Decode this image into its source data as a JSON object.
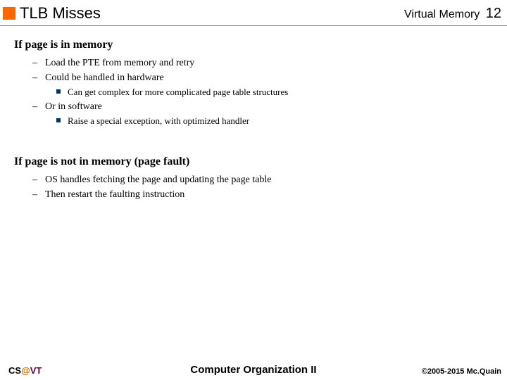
{
  "header": {
    "title": "TLB Misses",
    "topic": "Virtual Memory",
    "page": "12"
  },
  "s1": {
    "heading": "If page is in memory",
    "items": {
      "0": "Load the PTE from memory and retry",
      "1": "Could be handled in hardware",
      "1sub": "Can get complex for more complicated page table structures",
      "2": "Or in software",
      "2sub": "Raise a special exception, with optimized handler"
    }
  },
  "s2": {
    "heading": "If page is not in memory (page fault)",
    "items": {
      "0": "OS handles fetching the page and updating the page table",
      "1": "Then restart the faulting instruction"
    }
  },
  "footer": {
    "left_cs": "CS",
    "left_at": "@",
    "left_vt": "VT",
    "center": "Computer Organization II",
    "right": "©2005-2015 Mc.Quain"
  }
}
